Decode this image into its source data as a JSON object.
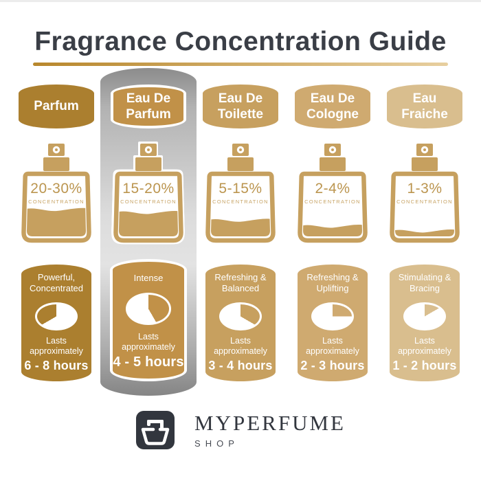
{
  "title": "Fragrance Concentration Guide",
  "theme": {
    "title_color": "#3a3e46",
    "underline_from": "#b8872c",
    "underline_to": "#e7cf9f",
    "bottle_color": "#c6a05f",
    "percent_text_color": "#bb954f",
    "concentration_text_color": "#c8a567",
    "logo_color": "#32363e",
    "highlight_gray": "#9a9a9a"
  },
  "columns": [
    {
      "name_lines": [
        "Parfum"
      ],
      "concentration": "20-30%",
      "concentration_label": "CONCENTRATION",
      "fill_percent": 45,
      "descriptor_lines": [
        "Powerful,",
        "Concentrated"
      ],
      "lasts_label": "Lasts approximately",
      "duration": "6 - 8 hours",
      "clock_start": 240,
      "clock_end": 360,
      "color": "#ab7f2f",
      "highlighted": false
    },
    {
      "name_lines": [
        "Eau De",
        "Parfum"
      ],
      "concentration": "15-20%",
      "concentration_label": "CONCENTRATION",
      "fill_percent": 40,
      "descriptor_lines": [
        "Intense"
      ],
      "lasts_label": "Lasts approximately",
      "duration": "4 - 5 hours",
      "clock_start": 0,
      "clock_end": 150,
      "color": "#c19148",
      "highlighted": true
    },
    {
      "name_lines": [
        "Eau De",
        "Toilette"
      ],
      "concentration": "5-15%",
      "concentration_label": "CONCENTRATION",
      "fill_percent": 27,
      "descriptor_lines": [
        "Refreshing &",
        "Balanced"
      ],
      "lasts_label": "Lasts approximately",
      "duration": "3 - 4 hours",
      "clock_start": 0,
      "clock_end": 120,
      "color": "#c7a05f",
      "highlighted": false
    },
    {
      "name_lines": [
        "Eau De",
        "Cologne"
      ],
      "concentration": "2-4%",
      "concentration_label": "CONCENTRATION",
      "fill_percent": 17,
      "descriptor_lines": [
        "Refreshing &",
        "Uplifting"
      ],
      "lasts_label": "Lasts approximately",
      "duration": "2 - 3 hours",
      "clock_start": 0,
      "clock_end": 90,
      "color": "#cfaa70",
      "highlighted": false
    },
    {
      "name_lines": [
        "Eau",
        "Fraiche"
      ],
      "concentration": "1-3%",
      "concentration_label": "CONCENTRATION",
      "fill_percent": 9,
      "descriptor_lines": [
        "Stimulating &",
        "Bracing"
      ],
      "lasts_label": "Lasts approximately",
      "duration": "1 - 2 hours",
      "clock_start": 0,
      "clock_end": 60,
      "color": "#d9be8e",
      "highlighted": false
    }
  ],
  "footer": {
    "brand": "MYPERFUME",
    "sub_brand": "SHOP"
  }
}
